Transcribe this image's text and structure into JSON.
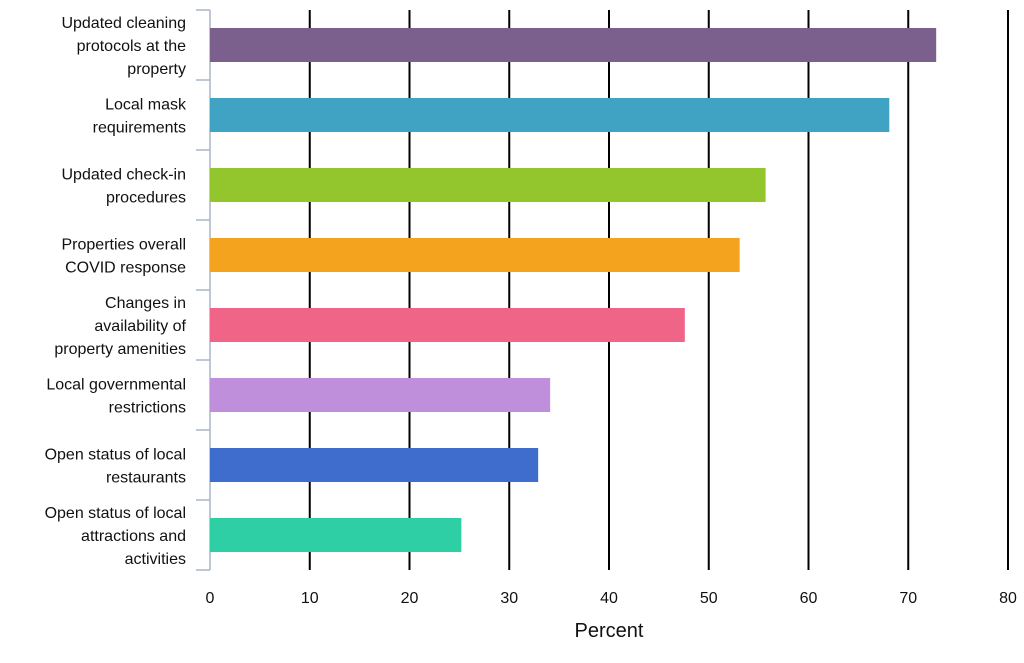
{
  "chart_data": {
    "type": "bar",
    "orientation": "horizontal",
    "categories": [
      "Updated cleaning protocols at the property",
      "Local mask requirements",
      "Updated check-in procedures",
      "Properties overall COVID response",
      "Changes in availability of property amenities",
      "Local governmental restrictions",
      "Open status of local restaurants",
      "Open status of local attractions and activities"
    ],
    "category_lines": [
      [
        "Updated cleaning",
        "protocols at the",
        "property"
      ],
      [
        "Local mask",
        "requirements"
      ],
      [
        "Updated check-in",
        "procedures"
      ],
      [
        "Properties overall",
        "COVID response"
      ],
      [
        "Changes in",
        "availability of",
        "property amenities"
      ],
      [
        "Local governmental",
        "restrictions"
      ],
      [
        "Open status of local",
        "restaurants"
      ],
      [
        "Open status of local",
        "attractions and",
        "activities"
      ]
    ],
    "values": [
      72.8,
      68.1,
      55.7,
      53.1,
      47.6,
      34.1,
      32.9,
      25.2
    ],
    "colors": [
      "#7b608d",
      "#40a3c4",
      "#92c62c",
      "#f4a31e",
      "#f06488",
      "#c08fdb",
      "#3e6dcd",
      "#2fcfa5"
    ],
    "xlabel": "Percent",
    "xlim": [
      0,
      80
    ],
    "xticks": [
      0,
      10,
      20,
      30,
      40,
      50,
      60,
      70,
      80
    ],
    "grid": "vertical"
  }
}
